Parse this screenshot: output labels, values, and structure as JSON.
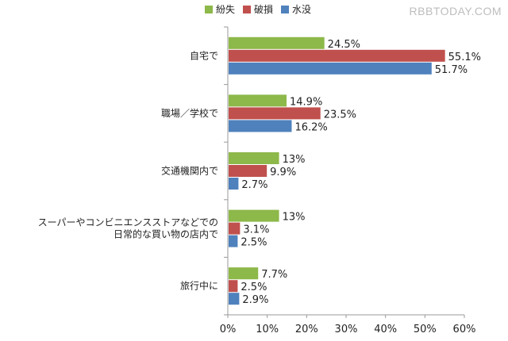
{
  "watermark": "RBBTODAY.COM",
  "colors": {
    "green": "#8DB84A",
    "red": "#C0504D",
    "blue": "#4F81BD"
  },
  "chart_data": {
    "type": "bar",
    "orientation": "horizontal",
    "categories": [
      [
        "自宅で"
      ],
      [
        "職場／学校で"
      ],
      [
        "交通機関内で"
      ],
      [
        "スーパーやコンビニエンスストアなどでの",
        "日常的な買い物の店内で"
      ],
      [
        "旅行中に"
      ]
    ],
    "series": [
      {
        "name": "紛失",
        "color": "#8DB84A",
        "values": [
          24.5,
          14.9,
          13,
          13,
          7.7
        ],
        "labels": [
          "24.5%",
          "14.9%",
          "13%",
          "13%",
          "7.7%"
        ]
      },
      {
        "name": "破損",
        "color": "#C0504D",
        "values": [
          55.1,
          23.5,
          9.9,
          3.1,
          2.5
        ],
        "labels": [
          "55.1%",
          "23.5%",
          "9.9%",
          "3.1%",
          "2.5%"
        ]
      },
      {
        "name": "水没",
        "color": "#4F81BD",
        "values": [
          51.7,
          16.2,
          2.7,
          2.5,
          2.9
        ],
        "labels": [
          "51.7%",
          "16.2%",
          "2.7%",
          "2.5%",
          "2.9%"
        ]
      }
    ],
    "xlim": [
      0,
      60
    ],
    "xticks": [
      0,
      10,
      20,
      30,
      40,
      50,
      60
    ],
    "xtick_labels": [
      "0%",
      "10%",
      "20%",
      "30%",
      "40%",
      "50%",
      "60%"
    ],
    "legend": "top-center",
    "grid": false
  }
}
